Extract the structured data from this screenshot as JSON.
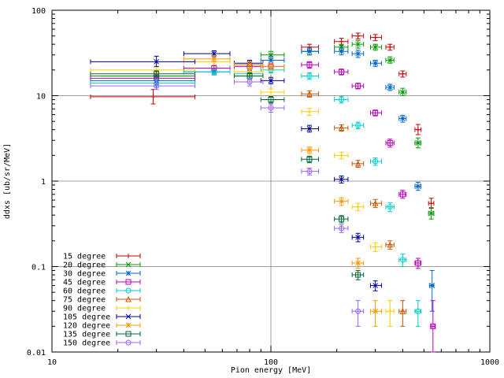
{
  "chart_data": {
    "type": "scatter",
    "title": "",
    "xlabel": "Pion energy [MeV]",
    "ylabel": "ddxs [ub/sr/MeV]",
    "xscale": "log",
    "yscale": "log",
    "xlim": [
      10,
      1000
    ],
    "ylim": [
      0.01,
      100
    ],
    "xticks": [
      "10",
      "100",
      "1000"
    ],
    "yticks": [
      "0.01",
      "0.1",
      "1",
      "10",
      "100"
    ],
    "grid": "major",
    "legend_position": "bottom-left",
    "error_bars": "x and y",
    "series": [
      {
        "name": "15 degree",
        "color": "#cc0000",
        "points": [
          {
            "x": 29,
            "y": 9.7,
            "xlo": 15,
            "xhi": 45,
            "ylo": 8.0,
            "yhi": 11.8
          },
          {
            "x": 150,
            "y": 37,
            "xlo": 138,
            "xhi": 165,
            "ylo": 34,
            "yhi": 40
          },
          {
            "x": 210,
            "y": 43,
            "xlo": 195,
            "xhi": 225,
            "ylo": 39,
            "yhi": 47
          },
          {
            "x": 250,
            "y": 50,
            "xlo": 235,
            "xhi": 265,
            "ylo": 46,
            "yhi": 54
          },
          {
            "x": 300,
            "y": 48,
            "xlo": 285,
            "xhi": 320,
            "ylo": 44,
            "yhi": 52
          },
          {
            "x": 350,
            "y": 37,
            "xlo": 335,
            "xhi": 365,
            "ylo": 34,
            "yhi": 40
          },
          {
            "x": 400,
            "y": 18,
            "xlo": 385,
            "xhi": 415,
            "ylo": 16.5,
            "yhi": 19.5
          },
          {
            "x": 470,
            "y": 4.0,
            "xlo": 455,
            "xhi": 485,
            "ylo": 3.5,
            "yhi": 4.6
          },
          {
            "x": 540,
            "y": 0.55,
            "xlo": 525,
            "xhi": 555,
            "ylo": 0.48,
            "yhi": 0.63
          }
        ]
      },
      {
        "name": "20 degree",
        "color": "#009900",
        "points": [
          {
            "x": 30,
            "y": 17,
            "xlo": 15,
            "xhi": 45,
            "ylo": 15.5,
            "yhi": 18.5
          },
          {
            "x": 80,
            "y": 23,
            "xlo": 68,
            "xhi": 92,
            "ylo": 21,
            "yhi": 25
          },
          {
            "x": 100,
            "y": 30,
            "xlo": 90,
            "xhi": 115,
            "ylo": 27,
            "yhi": 33
          },
          {
            "x": 150,
            "y": 33,
            "xlo": 138,
            "xhi": 165,
            "ylo": 30,
            "yhi": 36
          },
          {
            "x": 210,
            "y": 37,
            "xlo": 195,
            "xhi": 225,
            "ylo": 34,
            "yhi": 40
          },
          {
            "x": 250,
            "y": 40,
            "xlo": 235,
            "xhi": 265,
            "ylo": 36,
            "yhi": 44
          },
          {
            "x": 300,
            "y": 37,
            "xlo": 285,
            "xhi": 320,
            "ylo": 34,
            "yhi": 40
          },
          {
            "x": 350,
            "y": 26,
            "xlo": 335,
            "xhi": 365,
            "ylo": 24,
            "yhi": 28.5
          },
          {
            "x": 400,
            "y": 11,
            "xlo": 385,
            "xhi": 415,
            "ylo": 10,
            "yhi": 12.2
          },
          {
            "x": 470,
            "y": 2.8,
            "xlo": 455,
            "xhi": 485,
            "ylo": 2.45,
            "yhi": 3.2
          },
          {
            "x": 540,
            "y": 0.42,
            "xlo": 525,
            "xhi": 555,
            "ylo": 0.36,
            "yhi": 0.49
          }
        ]
      },
      {
        "name": "30 degree",
        "color": "#0066cc",
        "points": [
          {
            "x": 30,
            "y": 15,
            "xlo": 15,
            "xhi": 45,
            "ylo": 13.5,
            "yhi": 16.5
          },
          {
            "x": 55,
            "y": 19,
            "xlo": 40,
            "xhi": 65,
            "ylo": 17.5,
            "yhi": 20.5
          },
          {
            "x": 100,
            "y": 26,
            "xlo": 90,
            "xhi": 115,
            "ylo": 23.5,
            "yhi": 28.5
          },
          {
            "x": 150,
            "y": 33,
            "xlo": 138,
            "xhi": 165,
            "ylo": 30,
            "yhi": 36
          },
          {
            "x": 210,
            "y": 33,
            "xlo": 195,
            "xhi": 225,
            "ylo": 30,
            "yhi": 36
          },
          {
            "x": 250,
            "y": 31,
            "xlo": 235,
            "xhi": 265,
            "ylo": 28,
            "yhi": 34
          },
          {
            "x": 300,
            "y": 24,
            "xlo": 285,
            "xhi": 320,
            "ylo": 22,
            "yhi": 26
          },
          {
            "x": 350,
            "y": 12.5,
            "xlo": 335,
            "xhi": 365,
            "ylo": 11.5,
            "yhi": 13.6
          },
          {
            "x": 400,
            "y": 5.4,
            "xlo": 385,
            "xhi": 415,
            "ylo": 4.9,
            "yhi": 5.9
          },
          {
            "x": 470,
            "y": 0.87,
            "xlo": 455,
            "xhi": 485,
            "ylo": 0.78,
            "yhi": 0.97
          },
          {
            "x": 545,
            "y": 0.06,
            "xlo": 530,
            "xhi": 555,
            "ylo": 0.03,
            "yhi": 0.09
          }
        ]
      },
      {
        "name": "45 degree",
        "color": "#bb00bb",
        "points": [
          {
            "x": 30,
            "y": 16,
            "xlo": 15,
            "xhi": 45,
            "ylo": 14.5,
            "yhi": 17.5
          },
          {
            "x": 55,
            "y": 21,
            "xlo": 40,
            "xhi": 65,
            "ylo": 19.5,
            "yhi": 22.5
          },
          {
            "x": 80,
            "y": 22,
            "xlo": 68,
            "xhi": 92,
            "ylo": 20,
            "yhi": 24
          },
          {
            "x": 100,
            "y": 22,
            "xlo": 90,
            "xhi": 115,
            "ylo": 20,
            "yhi": 24
          },
          {
            "x": 150,
            "y": 23,
            "xlo": 138,
            "xhi": 165,
            "ylo": 21,
            "yhi": 25
          },
          {
            "x": 210,
            "y": 19,
            "xlo": 195,
            "xhi": 225,
            "ylo": 17.5,
            "yhi": 20.5
          },
          {
            "x": 250,
            "y": 13,
            "xlo": 235,
            "xhi": 265,
            "ylo": 12,
            "yhi": 14
          },
          {
            "x": 300,
            "y": 6.3,
            "xlo": 285,
            "xhi": 320,
            "ylo": 5.8,
            "yhi": 6.8
          },
          {
            "x": 350,
            "y": 2.8,
            "xlo": 335,
            "xhi": 365,
            "ylo": 2.5,
            "yhi": 3.1
          },
          {
            "x": 400,
            "y": 0.7,
            "xlo": 385,
            "xhi": 415,
            "ylo": 0.63,
            "yhi": 0.78
          },
          {
            "x": 470,
            "y": 0.11,
            "xlo": 455,
            "xhi": 485,
            "ylo": 0.095,
            "yhi": 0.125
          },
          {
            "x": 550,
            "y": 0.02,
            "xlo": 540,
            "xhi": 560,
            "ylo": 0.01,
            "yhi": 0.04
          }
        ]
      },
      {
        "name": "60 degree",
        "color": "#00cccc",
        "points": [
          {
            "x": 30,
            "y": 14,
            "xlo": 15,
            "xhi": 45,
            "ylo": 12.5,
            "yhi": 15.5
          },
          {
            "x": 55,
            "y": 19,
            "xlo": 40,
            "xhi": 65,
            "ylo": 17.5,
            "yhi": 20.5
          },
          {
            "x": 80,
            "y": 18,
            "xlo": 68,
            "xhi": 92,
            "ylo": 16.5,
            "yhi": 19.5
          },
          {
            "x": 100,
            "y": 20,
            "xlo": 90,
            "xhi": 115,
            "ylo": 18.5,
            "yhi": 21.5
          },
          {
            "x": 150,
            "y": 17,
            "xlo": 138,
            "xhi": 165,
            "ylo": 15.5,
            "yhi": 18.5
          },
          {
            "x": 210,
            "y": 9,
            "xlo": 195,
            "xhi": 225,
            "ylo": 8.2,
            "yhi": 9.8
          },
          {
            "x": 250,
            "y": 4.5,
            "xlo": 235,
            "xhi": 265,
            "ylo": 4.1,
            "yhi": 4.9
          },
          {
            "x": 300,
            "y": 1.7,
            "xlo": 285,
            "xhi": 320,
            "ylo": 1.53,
            "yhi": 1.87
          },
          {
            "x": 350,
            "y": 0.5,
            "xlo": 335,
            "xhi": 365,
            "ylo": 0.44,
            "yhi": 0.56
          },
          {
            "x": 400,
            "y": 0.12,
            "xlo": 385,
            "xhi": 415,
            "ylo": 0.1,
            "yhi": 0.14
          },
          {
            "x": 470,
            "y": 0.03,
            "xlo": 455,
            "xhi": 485,
            "ylo": 0.02,
            "yhi": 0.04
          }
        ]
      },
      {
        "name": "75 degree",
        "color": "#cc5500",
        "points": [
          {
            "x": 150,
            "y": 10.5,
            "xlo": 138,
            "xhi": 165,
            "ylo": 9.6,
            "yhi": 11.4
          },
          {
            "x": 210,
            "y": 4.2,
            "xlo": 195,
            "xhi": 225,
            "ylo": 3.85,
            "yhi": 4.55
          },
          {
            "x": 250,
            "y": 1.6,
            "xlo": 235,
            "xhi": 265,
            "ylo": 1.45,
            "yhi": 1.75
          },
          {
            "x": 300,
            "y": 0.55,
            "xlo": 285,
            "xhi": 320,
            "ylo": 0.49,
            "yhi": 0.61
          },
          {
            "x": 350,
            "y": 0.18,
            "xlo": 335,
            "xhi": 365,
            "ylo": 0.16,
            "yhi": 0.2
          },
          {
            "x": 400,
            "y": 0.03,
            "xlo": 385,
            "xhi": 415,
            "ylo": 0.02,
            "yhi": 0.04
          }
        ]
      },
      {
        "name": "90 degree",
        "color": "#ffcc00",
        "points": [
          {
            "x": 30,
            "y": 20,
            "xlo": 15,
            "xhi": 45,
            "ylo": 18.5,
            "yhi": 21.5
          },
          {
            "x": 55,
            "y": 25,
            "xlo": 40,
            "xhi": 65,
            "ylo": 23,
            "yhi": 27
          },
          {
            "x": 80,
            "y": 19,
            "xlo": 68,
            "xhi": 92,
            "ylo": 17.5,
            "yhi": 20.5
          },
          {
            "x": 100,
            "y": 11,
            "xlo": 90,
            "xhi": 115,
            "ylo": 10,
            "yhi": 12
          },
          {
            "x": 150,
            "y": 6.5,
            "xlo": 138,
            "xhi": 165,
            "ylo": 5.9,
            "yhi": 7.1
          },
          {
            "x": 210,
            "y": 2.0,
            "xlo": 195,
            "xhi": 225,
            "ylo": 1.82,
            "yhi": 2.18
          },
          {
            "x": 250,
            "y": 0.5,
            "xlo": 235,
            "xhi": 265,
            "ylo": 0.45,
            "yhi": 0.55
          },
          {
            "x": 300,
            "y": 0.17,
            "xlo": 285,
            "xhi": 320,
            "ylo": 0.15,
            "yhi": 0.19
          },
          {
            "x": 350,
            "y": 0.03,
            "xlo": 335,
            "xhi": 365,
            "ylo": 0.02,
            "yhi": 0.04
          }
        ]
      },
      {
        "name": "105 degree",
        "color": "#000099",
        "points": [
          {
            "x": 30,
            "y": 25,
            "xlo": 15,
            "xhi": 45,
            "ylo": 22,
            "yhi": 29
          },
          {
            "x": 55,
            "y": 31,
            "xlo": 40,
            "xhi": 65,
            "ylo": 28.5,
            "yhi": 33.5
          },
          {
            "x": 80,
            "y": 24,
            "xlo": 68,
            "xhi": 92,
            "ylo": 22,
            "yhi": 26
          },
          {
            "x": 100,
            "y": 15,
            "xlo": 90,
            "xhi": 115,
            "ylo": 13.8,
            "yhi": 16.4
          },
          {
            "x": 150,
            "y": 4.1,
            "xlo": 138,
            "xhi": 165,
            "ylo": 3.75,
            "yhi": 4.5
          },
          {
            "x": 210,
            "y": 1.05,
            "xlo": 195,
            "xhi": 225,
            "ylo": 0.95,
            "yhi": 1.15
          },
          {
            "x": 250,
            "y": 0.22,
            "xlo": 235,
            "xhi": 265,
            "ylo": 0.195,
            "yhi": 0.245
          },
          {
            "x": 300,
            "y": 0.06,
            "xlo": 285,
            "xhi": 320,
            "ylo": 0.052,
            "yhi": 0.068
          }
        ]
      },
      {
        "name": "120 degree",
        "color": "#ff9900",
        "points": [
          {
            "x": 55,
            "y": 27,
            "xlo": 40,
            "xhi": 65,
            "ylo": 25,
            "yhi": 29
          },
          {
            "x": 80,
            "y": 23,
            "xlo": 68,
            "xhi": 92,
            "ylo": 21,
            "yhi": 25
          },
          {
            "x": 100,
            "y": 22,
            "xlo": 90,
            "xhi": 115,
            "ylo": 20,
            "yhi": 24
          },
          {
            "x": 150,
            "y": 2.3,
            "xlo": 138,
            "xhi": 165,
            "ylo": 2.1,
            "yhi": 2.5
          },
          {
            "x": 210,
            "y": 0.58,
            "xlo": 195,
            "xhi": 225,
            "ylo": 0.52,
            "yhi": 0.64
          },
          {
            "x": 250,
            "y": 0.11,
            "xlo": 235,
            "xhi": 265,
            "ylo": 0.095,
            "yhi": 0.125
          },
          {
            "x": 300,
            "y": 0.03,
            "xlo": 285,
            "xhi": 320,
            "ylo": 0.02,
            "yhi": 0.04
          }
        ]
      },
      {
        "name": "135 degree",
        "color": "#006633",
        "points": [
          {
            "x": 30,
            "y": 18,
            "xlo": 15,
            "xhi": 45,
            "ylo": 16.5,
            "yhi": 19.5
          },
          {
            "x": 80,
            "y": 17,
            "xlo": 68,
            "xhi": 92,
            "ylo": 15.5,
            "yhi": 18.5
          },
          {
            "x": 100,
            "y": 9,
            "xlo": 90,
            "xhi": 115,
            "ylo": 8.2,
            "yhi": 9.8
          },
          {
            "x": 150,
            "y": 1.8,
            "xlo": 138,
            "xhi": 165,
            "ylo": 1.64,
            "yhi": 1.96
          },
          {
            "x": 210,
            "y": 0.36,
            "xlo": 195,
            "xhi": 225,
            "ylo": 0.325,
            "yhi": 0.395
          },
          {
            "x": 250,
            "y": 0.08,
            "xlo": 235,
            "xhi": 265,
            "ylo": 0.07,
            "yhi": 0.09
          }
        ]
      },
      {
        "name": "150 degree",
        "color": "#9966ff",
        "points": [
          {
            "x": 30,
            "y": 13,
            "xlo": 15,
            "xhi": 45,
            "ylo": 11.8,
            "yhi": 14.2
          },
          {
            "x": 80,
            "y": 14.5,
            "xlo": 68,
            "xhi": 92,
            "ylo": 13,
            "yhi": 16
          },
          {
            "x": 100,
            "y": 7.2,
            "xlo": 90,
            "xhi": 115,
            "ylo": 6.4,
            "yhi": 8.0
          },
          {
            "x": 150,
            "y": 1.3,
            "xlo": 138,
            "xhi": 165,
            "ylo": 1.18,
            "yhi": 1.42
          },
          {
            "x": 210,
            "y": 0.28,
            "xlo": 195,
            "xhi": 225,
            "ylo": 0.25,
            "yhi": 0.31
          },
          {
            "x": 250,
            "y": 0.03,
            "xlo": 235,
            "xhi": 265,
            "ylo": 0.02,
            "yhi": 0.04
          }
        ]
      }
    ]
  }
}
